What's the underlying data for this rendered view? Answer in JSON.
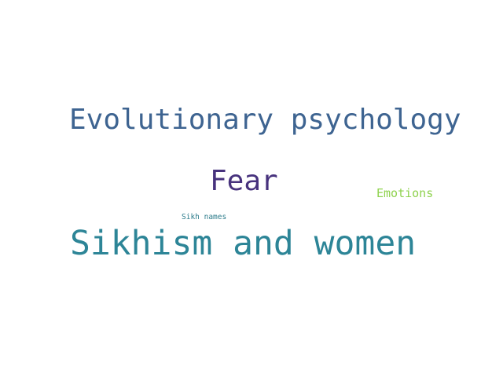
{
  "words": [
    {
      "text": "Evolutionary psychology",
      "color": "#3e6491"
    },
    {
      "text": "Fear",
      "color": "#47327d"
    },
    {
      "text": "Emotions",
      "color": "#8fd24e"
    },
    {
      "text": "Sikh names",
      "color": "#2e7d8c"
    },
    {
      "text": "Sikhism and women",
      "color": "#2d8597"
    }
  ]
}
